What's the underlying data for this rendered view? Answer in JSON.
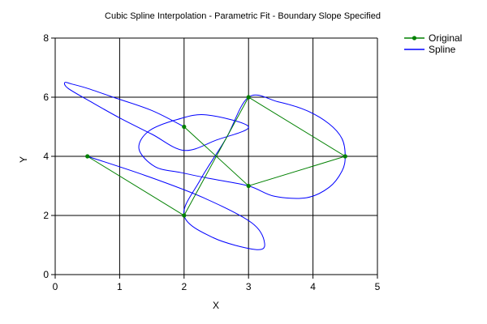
{
  "chart_data": {
    "type": "line",
    "title": "Cubic Spline Interpolation - Parametric Fit - Boundary Slope Specified",
    "xlabel": "X",
    "ylabel": "Y",
    "xlim": [
      0,
      5
    ],
    "ylim": [
      0,
      8
    ],
    "xticks": [
      0,
      1,
      2,
      3,
      4,
      5
    ],
    "yticks": [
      0,
      2,
      4,
      6,
      8
    ],
    "grid": true,
    "legend_position": "top-right",
    "series": [
      {
        "name": "Original",
        "color": "#008000",
        "marker": "circle",
        "x": [
          0.5,
          2,
          3,
          4.5,
          3,
          2
        ],
        "y": [
          4,
          2,
          6,
          4,
          3,
          5
        ]
      },
      {
        "name": "Spline",
        "color": "#0000ff",
        "marker": "none",
        "x": [
          0.5,
          1.4,
          2.3,
          3.05,
          3.25,
          3.1,
          2.45,
          2.0,
          2.25,
          2.65,
          3.0,
          3.45,
          3.9,
          4.25,
          4.45,
          4.5,
          4.45,
          4.25,
          3.9,
          3.4,
          3.0,
          2.4,
          1.95,
          1.55,
          1.3,
          1.45,
          1.9,
          2.35,
          3.0,
          2.5,
          2.0,
          1.5,
          1.0,
          0.55,
          0.2,
          0.15,
          0.25,
          0.5,
          0.9,
          1.5,
          2.0
        ],
        "y": [
          4,
          3.35,
          2.6,
          1.75,
          1.05,
          0.85,
          1.25,
          2.0,
          3.2,
          4.6,
          6,
          5.85,
          5.55,
          5.1,
          4.6,
          4,
          3.5,
          2.95,
          2.6,
          2.65,
          3,
          3.25,
          3.45,
          3.65,
          4.25,
          4.85,
          5.25,
          5.4,
          5,
          4.55,
          4.2,
          4.75,
          5.3,
          5.85,
          6.3,
          6.5,
          6.45,
          6.3,
          6.0,
          5.55,
          5
        ]
      }
    ]
  }
}
